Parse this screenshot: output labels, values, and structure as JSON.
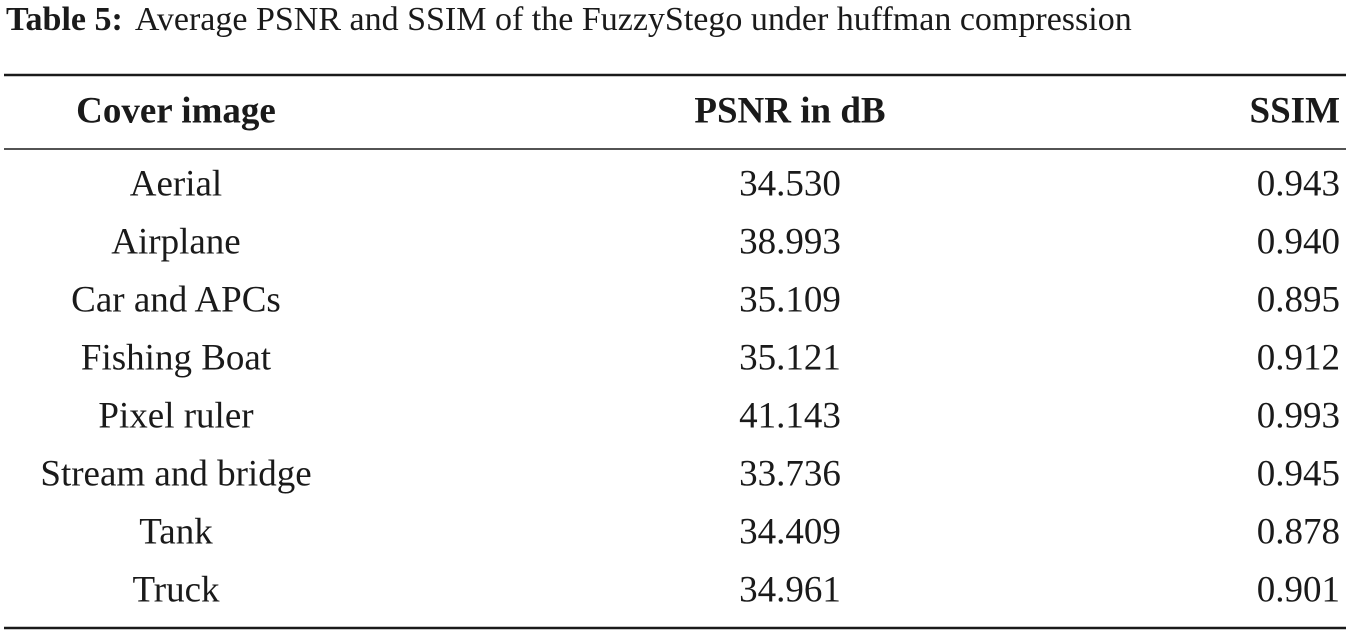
{
  "caption": {
    "label": "Table 5:",
    "text": "Average PSNR and SSIM of the FuzzyStego under huffman compression"
  },
  "table": {
    "columns": [
      "Cover image",
      "PSNR in dB",
      "SSIM"
    ],
    "rows": [
      [
        "Aerial",
        "34.530",
        "0.943"
      ],
      [
        "Airplane",
        "38.993",
        "0.940"
      ],
      [
        "Car and APCs",
        "35.109",
        "0.895"
      ],
      [
        "Fishing Boat",
        "35.121",
        "0.912"
      ],
      [
        "Pixel ruler",
        "41.143",
        "0.993"
      ],
      [
        "Stream and bridge",
        "33.736",
        "0.945"
      ],
      [
        "Tank",
        "34.409",
        "0.878"
      ],
      [
        "Truck",
        "34.961",
        "0.901"
      ]
    ]
  }
}
